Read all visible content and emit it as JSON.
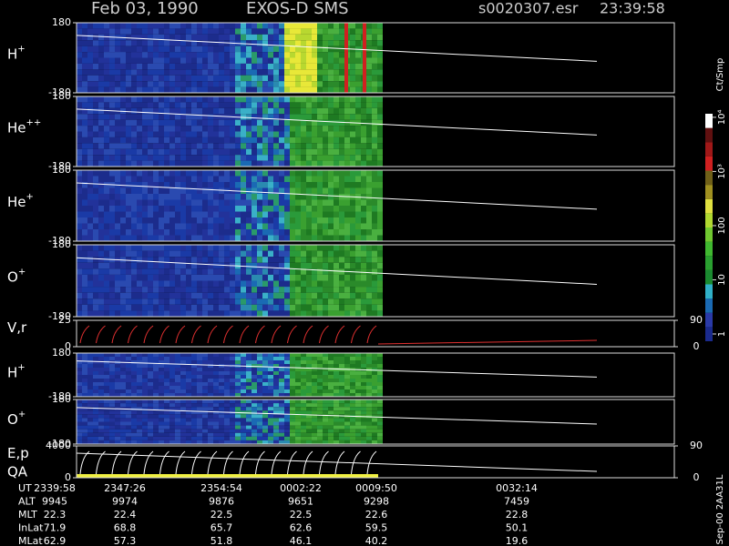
{
  "header": {
    "date": "Feb 03, 1990",
    "instrument": "EXOS-D SMS",
    "file": "s0020307.esr",
    "time": "23:39:58"
  },
  "panels": [
    {
      "species": "H",
      "charge": "+",
      "ylim": [
        -180,
        180
      ],
      "yticks": [
        -180,
        180
      ]
    },
    {
      "species": "He",
      "charge": "++",
      "ylim": [
        -180,
        180
      ],
      "yticks": [
        -180,
        180
      ]
    },
    {
      "species": "He",
      "charge": "+",
      "ylim": [
        -180,
        180
      ],
      "yticks": [
        -180,
        180
      ]
    },
    {
      "species": "O",
      "charge": "+",
      "ylim": [
        -180,
        180
      ],
      "yticks": [
        -180,
        180
      ]
    },
    {
      "species": "V,r",
      "ylim": [
        0,
        25
      ],
      "yticks": [
        0,
        25
      ],
      "y2lim": [
        0,
        90
      ],
      "y2ticks": [
        0,
        90
      ]
    },
    {
      "species": "H",
      "charge": "+",
      "ylim": [
        -180,
        180
      ],
      "yticks": [
        -180,
        180
      ]
    },
    {
      "species": "O",
      "charge": "+",
      "ylim": [
        -180,
        180
      ],
      "yticks": [
        -180,
        180
      ]
    },
    {
      "species": "E,p",
      "species2": "QA",
      "ylim": [
        0,
        4000
      ],
      "yticks": [
        0,
        4000
      ],
      "y2lim": [
        0,
        90
      ],
      "y2ticks": [
        0,
        90
      ]
    }
  ],
  "colorbar": {
    "label": "Ct/Smp",
    "ticks": [
      {
        "value": 1,
        "label": "1"
      },
      {
        "value": 10,
        "label": "10"
      },
      {
        "value": 100,
        "label": "100"
      },
      {
        "value": 1000,
        "label": "10³"
      },
      {
        "value": 10000,
        "label": "10⁴"
      }
    ]
  },
  "footer": {
    "rows": [
      {
        "label": "UT",
        "values": [
          "2339:58",
          "2347:26",
          "2354:54",
          "0002:22",
          "0009:50",
          "0032:14"
        ]
      },
      {
        "label": "ALT",
        "values": [
          "9945",
          "9974",
          "9876",
          "9651",
          "9298",
          "7459"
        ]
      },
      {
        "label": "MLT",
        "values": [
          "22.3",
          "22.4",
          "22.5",
          "22.5",
          "22.6",
          "22.8"
        ]
      },
      {
        "label": "InLat",
        "values": [
          "71.9",
          "68.8",
          "65.7",
          "62.6",
          "59.5",
          "50.1"
        ]
      },
      {
        "label": "MLat",
        "values": [
          "62.9",
          "57.3",
          "51.8",
          "46.1",
          "40.2",
          "19.6"
        ]
      }
    ]
  },
  "stamp": "Sep-00 2AA31L"
}
